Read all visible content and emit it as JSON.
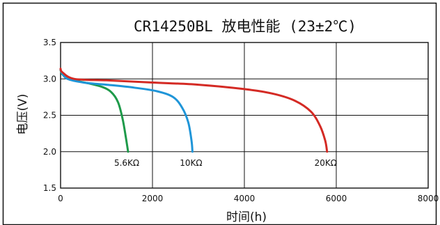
{
  "chart_data": {
    "type": "line",
    "title": "CR14250BL 放电性能 (23±2℃)",
    "xlabel": "时间(h)",
    "ylabel": "电压(V)",
    "xlim": [
      0,
      8000
    ],
    "ylim": [
      1.5,
      3.5
    ],
    "xticks": [
      "0",
      "2000",
      "4000",
      "6000",
      "8000"
    ],
    "yticks": [
      "1.5",
      "2.0",
      "2.5",
      "3.0",
      "3.5"
    ],
    "grid": true,
    "series": [
      {
        "name": "5.6KΩ",
        "color": "#1e9a4a",
        "points": [
          [
            0,
            3.12
          ],
          [
            30,
            3.07
          ],
          [
            100,
            3.03
          ],
          [
            300,
            2.98
          ],
          [
            600,
            2.94
          ],
          [
            900,
            2.89
          ],
          [
            1100,
            2.82
          ],
          [
            1250,
            2.68
          ],
          [
            1350,
            2.45
          ],
          [
            1420,
            2.2
          ],
          [
            1470,
            2.0
          ]
        ]
      },
      {
        "name": "10KΩ",
        "color": "#1f95d8",
        "points": [
          [
            0,
            3.13
          ],
          [
            30,
            3.08
          ],
          [
            150,
            3.0
          ],
          [
            500,
            2.95
          ],
          [
            1000,
            2.92
          ],
          [
            1600,
            2.88
          ],
          [
            2100,
            2.83
          ],
          [
            2450,
            2.75
          ],
          [
            2650,
            2.6
          ],
          [
            2780,
            2.4
          ],
          [
            2850,
            2.15
          ],
          [
            2870,
            2.0
          ]
        ]
      },
      {
        "name": "20KΩ",
        "color": "#d42a24",
        "points": [
          [
            0,
            3.14
          ],
          [
            40,
            3.09
          ],
          [
            300,
            3.0
          ],
          [
            1000,
            2.98
          ],
          [
            2000,
            2.95
          ],
          [
            3000,
            2.92
          ],
          [
            4000,
            2.86
          ],
          [
            4600,
            2.8
          ],
          [
            5100,
            2.7
          ],
          [
            5450,
            2.55
          ],
          [
            5650,
            2.35
          ],
          [
            5760,
            2.15
          ],
          [
            5800,
            2.0
          ]
        ]
      }
    ]
  }
}
